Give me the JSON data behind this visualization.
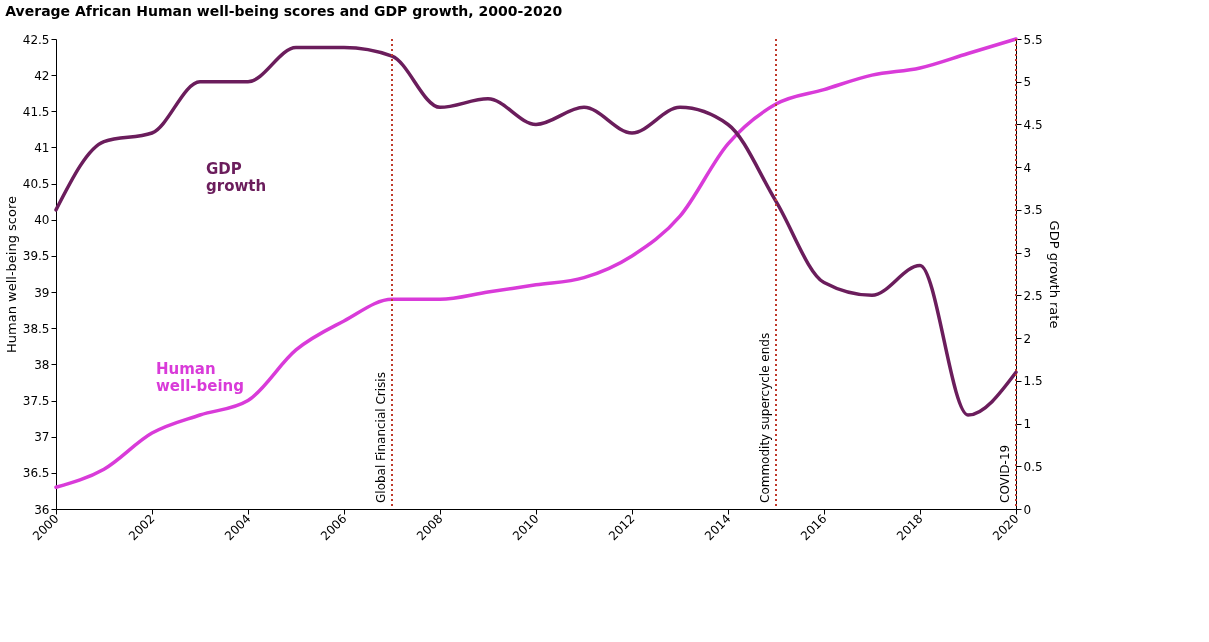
{
  "chart_data": {
    "type": "line",
    "title": "Average African Human well-being scores and GDP growth, 2000-2020",
    "ylabel": "Human well-being score",
    "y2label": "GDP growth rate",
    "x": [
      2000,
      2001,
      2002,
      2003,
      2004,
      2005,
      2006,
      2007,
      2008,
      2009,
      2010,
      2011,
      2012,
      2013,
      2014,
      2015,
      2016,
      2017,
      2018,
      2019,
      2020
    ],
    "series": [
      {
        "name": "GDP growth",
        "color": "#6b1d5c",
        "axis": "y2",
        "values": [
          3.5,
          4.3,
          4.4,
          5.0,
          5.0,
          5.4,
          5.4,
          5.3,
          4.7,
          4.8,
          4.5,
          4.7,
          4.4,
          4.7,
          4.5,
          3.6,
          2.65,
          2.5,
          2.85,
          1.1,
          1.6
        ]
      },
      {
        "name": "Human well-being",
        "color": "#d93bd9",
        "values": [
          36.3,
          36.55,
          37.05,
          37.3,
          37.5,
          38.2,
          38.6,
          38.9,
          38.9,
          39.0,
          39.1,
          39.2,
          39.5,
          40.05,
          41.05,
          41.6,
          41.8,
          42.0,
          42.1,
          42.3,
          42.5
        ]
      }
    ],
    "xlim": [
      2000,
      2020
    ],
    "xticks": [
      2000,
      2002,
      2004,
      2006,
      2008,
      2010,
      2012,
      2014,
      2016,
      2018,
      2020
    ],
    "ylim": [
      36,
      42.5
    ],
    "yticks": [
      36,
      36.5,
      37,
      37.5,
      38,
      38.5,
      39,
      39.5,
      40,
      40.5,
      41,
      41.5,
      42,
      42.5
    ],
    "y2lim": [
      0,
      5.5
    ],
    "y2ticks": [
      0,
      0.5,
      1,
      1.5,
      2,
      2.5,
      3,
      3.5,
      4,
      4.5,
      5,
      5.5
    ],
    "ref_lines": [
      {
        "axis": "x",
        "value": 2007,
        "label": "Global Financial Crisis",
        "color": "#c0392b",
        "line_style": "dotted"
      },
      {
        "axis": "x",
        "value": 2015,
        "label": "Commodity supercycle ends",
        "color": "#c0392b",
        "line_style": "dotted"
      },
      {
        "axis": "x",
        "value": 2020,
        "label": "COVID-19",
        "color": "#c0392b",
        "line_style": "dotted"
      }
    ],
    "grid": false,
    "legend": false,
    "marker": "none",
    "line_style": "solid"
  }
}
